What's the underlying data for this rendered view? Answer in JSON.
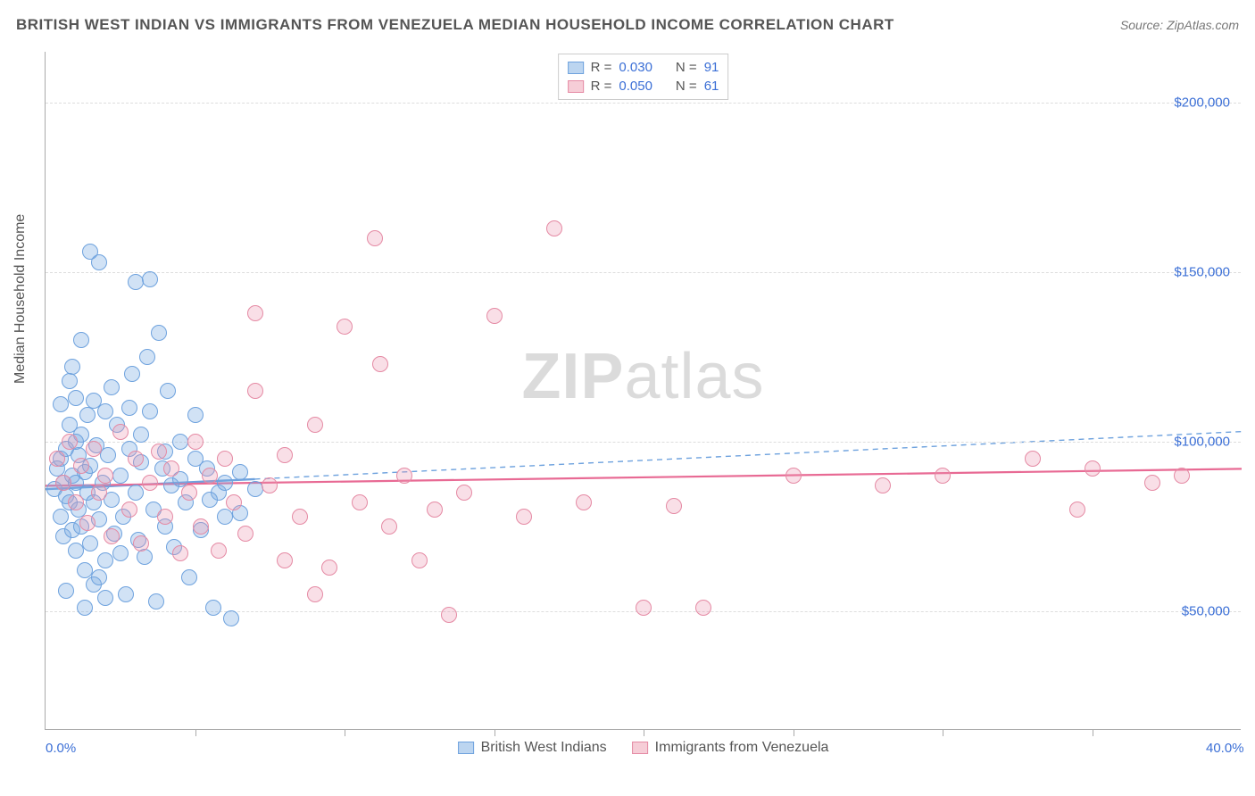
{
  "title": "BRITISH WEST INDIAN VS IMMIGRANTS FROM VENEZUELA MEDIAN HOUSEHOLD INCOME CORRELATION CHART",
  "source": "Source: ZipAtlas.com",
  "watermark_bold": "ZIP",
  "watermark_rest": "atlas",
  "y_axis_title": "Median Household Income",
  "chart": {
    "type": "scatter",
    "xlim": [
      0,
      40
    ],
    "ylim": [
      15000,
      215000
    ],
    "background_color": "#ffffff",
    "grid_color": "#dddddd",
    "axis_color": "#aaaaaa",
    "marker_radius": 9,
    "marker_stroke_width": 1.2,
    "x_ticks": [
      0,
      5,
      10,
      15,
      20,
      25,
      30,
      35,
      40
    ],
    "x_tick_labels": {
      "0": "0.0%",
      "40": "40.0%"
    },
    "y_gridlines": [
      50000,
      100000,
      150000,
      200000
    ],
    "y_tick_labels": {
      "50000": "$50,000",
      "100000": "$100,000",
      "150000": "$150,000",
      "200000": "$200,000"
    }
  },
  "legend_top": [
    {
      "swatch_fill": "#bcd5f0",
      "swatch_stroke": "#6ea2de",
      "r_label": "R =",
      "r_value": "0.030",
      "n_label": "N =",
      "n_value": "91"
    },
    {
      "swatch_fill": "#f6cdd7",
      "swatch_stroke": "#e58aa4",
      "r_label": "R =",
      "r_value": "0.050",
      "n_label": "N =",
      "n_value": "61"
    }
  ],
  "legend_bottom": [
    {
      "swatch_fill": "#bcd5f0",
      "swatch_stroke": "#6ea2de",
      "label": "British West Indians"
    },
    {
      "swatch_fill": "#f6cdd7",
      "swatch_stroke": "#e58aa4",
      "label": "Immigrants from Venezuela"
    }
  ],
  "series": [
    {
      "name": "British West Indians",
      "fill": "rgba(122,172,225,0.35)",
      "stroke": "#6ea2de",
      "trend": {
        "x1": 0,
        "y1": 86000,
        "x2": 40,
        "y2": 103000,
        "dash": "6,5",
        "color": "#6ea2de",
        "width": 1.4,
        "solid_until_x": 7
      },
      "points": [
        [
          0.3,
          86000
        ],
        [
          0.4,
          92000
        ],
        [
          0.5,
          78000
        ],
        [
          0.5,
          95000
        ],
        [
          0.6,
          88000
        ],
        [
          0.6,
          72000
        ],
        [
          0.7,
          84000
        ],
        [
          0.7,
          98000
        ],
        [
          0.8,
          105000
        ],
        [
          0.8,
          82000
        ],
        [
          0.9,
          90000
        ],
        [
          0.9,
          74000
        ],
        [
          1.0,
          88000
        ],
        [
          1.0,
          113000
        ],
        [
          1.0,
          68000
        ],
        [
          1.1,
          96000
        ],
        [
          1.1,
          80000
        ],
        [
          1.2,
          102000
        ],
        [
          1.2,
          75000
        ],
        [
          1.3,
          91000
        ],
        [
          1.3,
          62000
        ],
        [
          1.4,
          85000
        ],
        [
          1.4,
          108000
        ],
        [
          1.5,
          70000
        ],
        [
          1.5,
          93000
        ],
        [
          1.6,
          82000
        ],
        [
          1.6,
          58000
        ],
        [
          1.7,
          99000
        ],
        [
          1.8,
          77000
        ],
        [
          1.8,
          153000
        ],
        [
          1.9,
          88000
        ],
        [
          2.0,
          65000
        ],
        [
          2.0,
          109000
        ],
        [
          2.1,
          96000
        ],
        [
          2.2,
          83000
        ],
        [
          2.3,
          73000
        ],
        [
          2.4,
          105000
        ],
        [
          2.5,
          90000
        ],
        [
          2.6,
          78000
        ],
        [
          2.7,
          55000
        ],
        [
          2.8,
          98000
        ],
        [
          2.9,
          120000
        ],
        [
          3.0,
          147000
        ],
        [
          3.0,
          85000
        ],
        [
          3.1,
          71000
        ],
        [
          3.2,
          94000
        ],
        [
          3.3,
          66000
        ],
        [
          3.4,
          125000
        ],
        [
          3.5,
          109000
        ],
        [
          3.6,
          80000
        ],
        [
          3.7,
          53000
        ],
        [
          3.8,
          132000
        ],
        [
          3.9,
          92000
        ],
        [
          4.0,
          75000
        ],
        [
          4.1,
          115000
        ],
        [
          4.2,
          87000
        ],
        [
          4.3,
          69000
        ],
        [
          4.5,
          100000
        ],
        [
          4.7,
          82000
        ],
        [
          4.8,
          60000
        ],
        [
          5.0,
          108000
        ],
        [
          5.2,
          74000
        ],
        [
          5.4,
          92000
        ],
        [
          5.6,
          51000
        ],
        [
          5.8,
          85000
        ],
        [
          6.0,
          78000
        ],
        [
          6.2,
          48000
        ],
        [
          6.5,
          91000
        ],
        [
          1.5,
          156000
        ],
        [
          0.9,
          122000
        ],
        [
          1.2,
          130000
        ],
        [
          2.2,
          116000
        ],
        [
          3.5,
          148000
        ],
        [
          0.7,
          56000
        ],
        [
          1.3,
          51000
        ],
        [
          1.8,
          60000
        ],
        [
          2.0,
          54000
        ],
        [
          2.5,
          67000
        ],
        [
          0.5,
          111000
        ],
        [
          0.8,
          118000
        ],
        [
          1.0,
          100000
        ],
        [
          1.6,
          112000
        ],
        [
          2.8,
          110000
        ],
        [
          3.2,
          102000
        ],
        [
          4.0,
          97000
        ],
        [
          4.5,
          89000
        ],
        [
          5.0,
          95000
        ],
        [
          5.5,
          83000
        ],
        [
          6.0,
          88000
        ],
        [
          6.5,
          79000
        ],
        [
          7.0,
          86000
        ]
      ]
    },
    {
      "name": "Immigrants from Venezuela",
      "fill": "rgba(235,150,175,0.30)",
      "stroke": "#e58aa4",
      "trend": {
        "x1": 0,
        "y1": 87000,
        "x2": 40,
        "y2": 92000,
        "dash": "",
        "color": "#e86a94",
        "width": 2.2
      },
      "points": [
        [
          0.4,
          95000
        ],
        [
          0.6,
          88000
        ],
        [
          0.8,
          100000
        ],
        [
          1.0,
          82000
        ],
        [
          1.2,
          93000
        ],
        [
          1.4,
          76000
        ],
        [
          1.6,
          98000
        ],
        [
          1.8,
          85000
        ],
        [
          2.0,
          90000
        ],
        [
          2.2,
          72000
        ],
        [
          2.5,
          103000
        ],
        [
          2.8,
          80000
        ],
        [
          3.0,
          95000
        ],
        [
          3.2,
          70000
        ],
        [
          3.5,
          88000
        ],
        [
          3.8,
          97000
        ],
        [
          4.0,
          78000
        ],
        [
          4.2,
          92000
        ],
        [
          4.5,
          67000
        ],
        [
          4.8,
          85000
        ],
        [
          5.0,
          100000
        ],
        [
          5.2,
          75000
        ],
        [
          5.5,
          90000
        ],
        [
          5.8,
          68000
        ],
        [
          6.0,
          95000
        ],
        [
          6.3,
          82000
        ],
        [
          6.7,
          73000
        ],
        [
          7.0,
          115000
        ],
        [
          7.5,
          87000
        ],
        [
          8.0,
          96000
        ],
        [
          8.5,
          78000
        ],
        [
          9.0,
          105000
        ],
        [
          9.5,
          63000
        ],
        [
          10.0,
          134000
        ],
        [
          10.5,
          82000
        ],
        [
          11.0,
          160000
        ],
        [
          11.2,
          123000
        ],
        [
          11.5,
          75000
        ],
        [
          12.0,
          90000
        ],
        [
          12.5,
          65000
        ],
        [
          13.0,
          80000
        ],
        [
          13.5,
          49000
        ],
        [
          14.0,
          85000
        ],
        [
          15.0,
          137000
        ],
        [
          16.0,
          78000
        ],
        [
          17.0,
          163000
        ],
        [
          18.0,
          82000
        ],
        [
          20.0,
          51000
        ],
        [
          21.0,
          81000
        ],
        [
          22.0,
          51000
        ],
        [
          25.0,
          90000
        ],
        [
          28.0,
          87000
        ],
        [
          30.0,
          90000
        ],
        [
          33.0,
          95000
        ],
        [
          34.5,
          80000
        ],
        [
          35.0,
          92000
        ],
        [
          37.0,
          88000
        ],
        [
          38.0,
          90000
        ],
        [
          7.0,
          138000
        ],
        [
          8.0,
          65000
        ],
        [
          9.0,
          55000
        ]
      ]
    }
  ]
}
